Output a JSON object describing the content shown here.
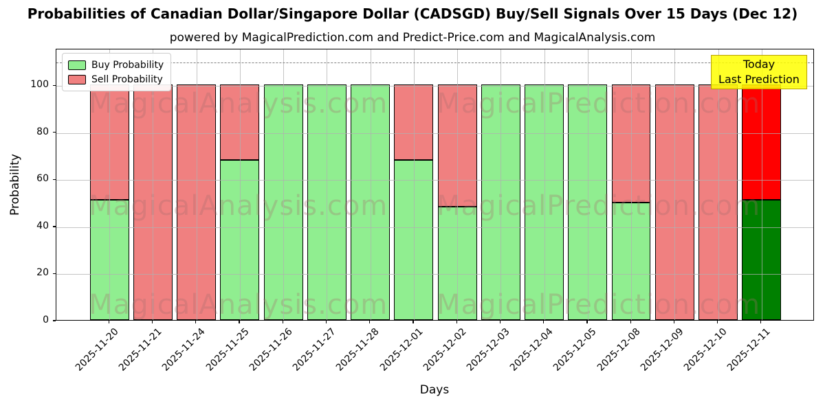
{
  "title": "Probabilities of Canadian Dollar/Singapore Dollar (CADSGD) Buy/Sell Signals Over 15 Days (Dec 12)",
  "subtitle": "powered by MagicalPrediction.com and Predict-Price.com and MagicalAnalysis.com",
  "legend": {
    "items": [
      {
        "label": "Buy Probability",
        "color": "#90ee90"
      },
      {
        "label": "Sell Probability",
        "color": "#f08080"
      }
    ]
  },
  "annotation": {
    "line1": "Today",
    "line2": "Last Prediction",
    "bg_color": "#ffff00",
    "border_color": "#b8a000"
  },
  "watermarks": {
    "left_text": "MagicalAnalysis.com",
    "right_text": "MagicalPrediction.com",
    "color": "#a56e6e"
  },
  "chart_data": {
    "type": "bar",
    "stacked": true,
    "title": "Probabilities of Canadian Dollar/Singapore Dollar (CADSGD) Buy/Sell Signals Over 15 Days (Dec 12)",
    "xlabel": "Days",
    "ylabel": "Probability",
    "categories": [
      "2025-11-20",
      "2025-11-21",
      "2025-11-24",
      "2025-11-25",
      "2025-11-26",
      "2025-11-27",
      "2025-11-28",
      "2025-12-01",
      "2025-12-02",
      "2025-12-03",
      "2025-12-04",
      "2025-12-05",
      "2025-12-08",
      "2025-12-09",
      "2025-12-10",
      "2025-12-11"
    ],
    "series": [
      {
        "name": "Buy Probability",
        "color": "#90ee90",
        "values": [
          51,
          0,
          0,
          68,
          100,
          100,
          100,
          68,
          48,
          100,
          100,
          100,
          50,
          0,
          0,
          51
        ]
      },
      {
        "name": "Sell Probability",
        "color": "#f08080",
        "values": [
          49,
          100,
          100,
          32,
          0,
          0,
          0,
          32,
          52,
          0,
          0,
          0,
          50,
          100,
          100,
          49
        ]
      }
    ],
    "highlight_last_bar": {
      "buy_color": "#008000",
      "sell_color": "#ff0000"
    },
    "yticks": [
      0,
      20,
      40,
      60,
      80,
      100
    ],
    "ylim": [
      0,
      115.5
    ],
    "threshold_line": {
      "value": 110,
      "style": "dashed",
      "color": "#7f7f7f"
    },
    "grid": true,
    "legend_position": "upper left",
    "bar_edge_color": "#000000"
  }
}
